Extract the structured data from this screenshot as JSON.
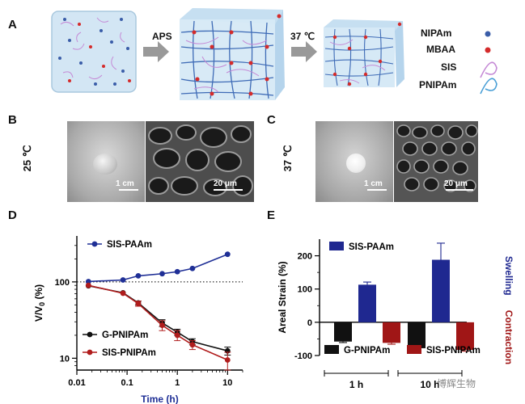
{
  "panels": {
    "A": "A",
    "B": "B",
    "C": "C",
    "D": "D",
    "E": "E"
  },
  "panelA": {
    "arrow1_label": "APS",
    "arrow2_label": "37 ℃",
    "legend": [
      {
        "label": "NIPAm",
        "color": "#3a5da8"
      },
      {
        "label": "MBAA",
        "color": "#d42b2b"
      },
      {
        "label": "SIS",
        "color": "#c58ad6"
      },
      {
        "label": "PNIPAm",
        "color": "#4a9fd6"
      }
    ]
  },
  "panelB": {
    "temperature": "25 ℃",
    "scale_left": "1 cm",
    "scale_right": "20 μm"
  },
  "panelC": {
    "temperature": "37 ℃",
    "scale_left": "1 cm",
    "scale_right": "20 μm"
  },
  "watermark": "博辉生物",
  "chart_data": [
    {
      "type": "line",
      "panel": "D",
      "xlabel": "Time (h)",
      "ylabel": "V/V0 (%)",
      "xscale": "log",
      "yscale": "log",
      "xlim": [
        0.01,
        20
      ],
      "ylim": [
        7,
        400
      ],
      "xticks": [
        "0.01",
        "0.1",
        "1",
        "10"
      ],
      "yticks": [
        "10",
        "100"
      ],
      "reference_line": {
        "y": 100,
        "style": "dotted"
      },
      "series": [
        {
          "name": "SIS-PAAm",
          "color": "#1f2f96",
          "marker": "circle",
          "x": [
            0.017,
            0.083,
            0.167,
            0.5,
            1,
            2,
            10
          ],
          "y": [
            101,
            106,
            120,
            128,
            136,
            150,
            230
          ],
          "err": [
            0,
            0,
            0,
            0,
            0,
            0,
            0
          ]
        },
        {
          "name": "G-PNIPAm",
          "color": "#111111",
          "marker": "circle",
          "x": [
            0.017,
            0.083,
            0.167,
            0.5,
            1,
            2,
            10
          ],
          "y": [
            89,
            72,
            53,
            29,
            22,
            16.5,
            12.5
          ],
          "err": [
            0,
            0,
            3,
            3,
            2,
            1.5,
            1.5
          ]
        },
        {
          "name": "SIS-PNIPAm",
          "color": "#b01c1c",
          "marker": "circle",
          "x": [
            0.017,
            0.083,
            0.167,
            0.5,
            1,
            2,
            10
          ],
          "y": [
            90,
            71,
            52,
            27,
            20,
            15,
            9.5
          ],
          "err": [
            0,
            0,
            4,
            4,
            3,
            2,
            2.5
          ]
        }
      ]
    },
    {
      "type": "bar",
      "panel": "E",
      "ylabel": "Areal Strain (%)",
      "categories": [
        "1 h",
        "10 h"
      ],
      "ylim": [
        -100,
        250
      ],
      "yticks": [
        -100,
        0,
        100,
        200
      ],
      "series": [
        {
          "name": "G-PNIPAm",
          "color": "#111111",
          "values": [
            -58,
            -78
          ],
          "err": [
            3,
            3
          ]
        },
        {
          "name": "SIS-PAAm",
          "color": "#1f2890",
          "values": [
            113,
            188
          ],
          "err": [
            8,
            50
          ]
        },
        {
          "name": "SIS-PNIPAm",
          "color": "#a01616",
          "values": [
            -62,
            -83
          ],
          "err": [
            4,
            4
          ]
        }
      ],
      "side_labels": {
        "top": "Swelling",
        "bottom": "Contraction"
      },
      "side_colors": {
        "top": "#1f2890",
        "bottom": "#a01616"
      }
    }
  ]
}
